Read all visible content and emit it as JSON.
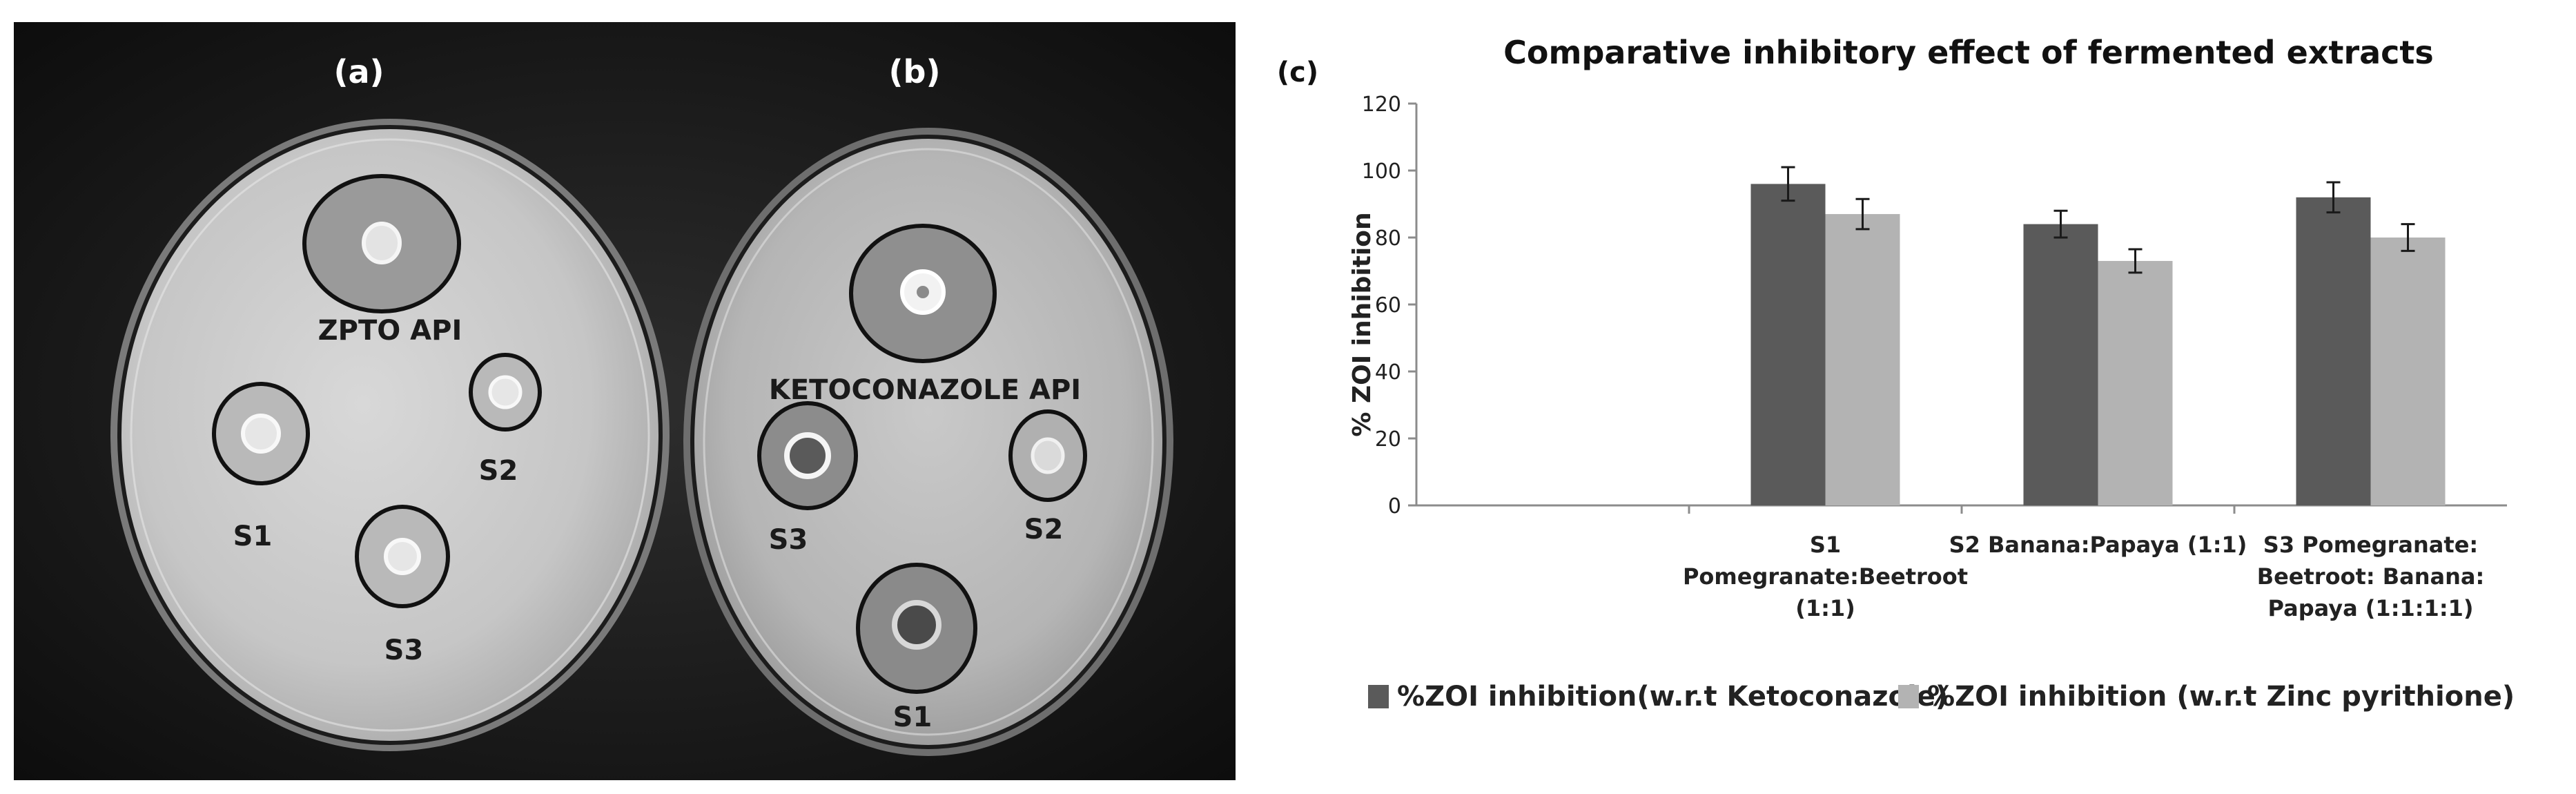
{
  "photos": {
    "panel_a": {
      "label": "(a)",
      "api_label": "ZPTO API",
      "sample_labels": [
        "S1",
        "S2",
        "S3"
      ]
    },
    "panel_b": {
      "label": "(b)",
      "api_label": "KETOCONAZOLE API",
      "sample_labels": [
        "S3",
        "S2",
        "S1"
      ]
    }
  },
  "chart_panel_label": "(c)",
  "chart_data": {
    "type": "bar",
    "title": "Comparative inhibitory effect of fermented extracts",
    "ylabel": "% ZOI inhibition",
    "xlabel": "",
    "ylim": [
      0,
      120
    ],
    "yticks": [
      0,
      20,
      40,
      60,
      80,
      100,
      120
    ],
    "grid": false,
    "legend_position": "bottom",
    "categories": [
      "",
      [
        "S1",
        "Pomegranate:Beetroot",
        "(1:1)"
      ],
      [
        "S2 Banana:Papaya (1:1)"
      ],
      [
        "S3  Pomegranate:",
        "Beetroot: Banana:",
        "Papaya (1:1:1:1)"
      ]
    ],
    "series": [
      {
        "name": "%ZOI inhibition(w.r.t Ketoconazole)",
        "color": "#5a5a5a",
        "values": [
          null,
          96,
          84,
          92
        ],
        "errors": [
          null,
          5,
          4,
          4.5
        ]
      },
      {
        "name": "%ZOI inhibition (w.r.t Zinc pyrithione)",
        "color": "#b3b3b3",
        "values": [
          null,
          87,
          73,
          80
        ],
        "errors": [
          null,
          4.5,
          3.5,
          4
        ]
      }
    ]
  }
}
